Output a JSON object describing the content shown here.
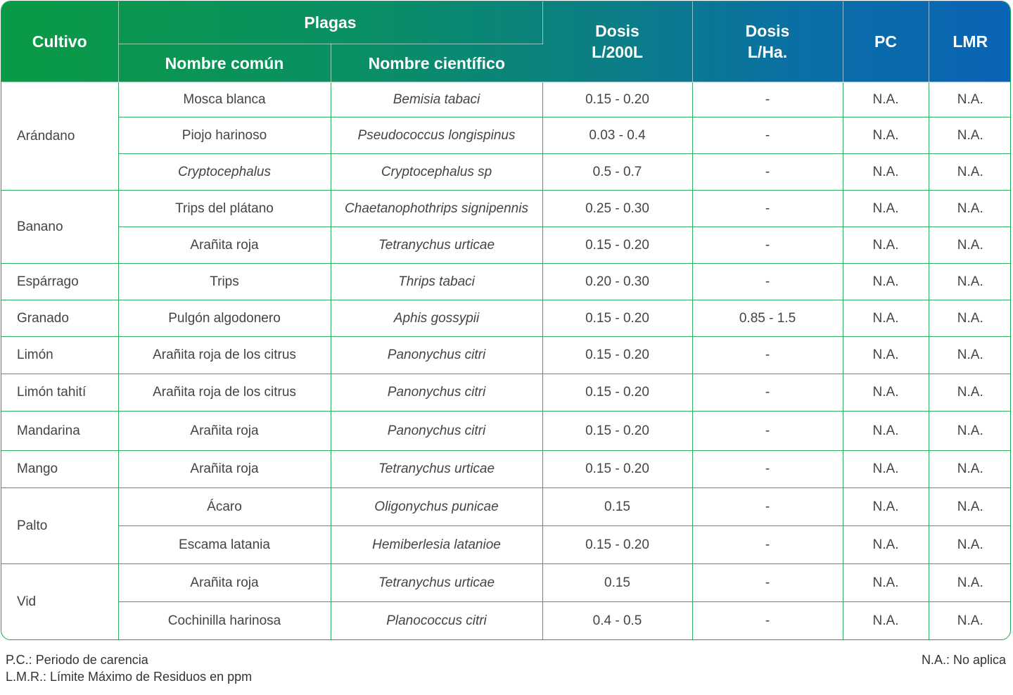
{
  "header": {
    "cultivo": "Cultivo",
    "plagas": "Plagas",
    "nombre_comun": "Nombre común",
    "nombre_cientifico": "Nombre científico",
    "dosis_200l_line1": "Dosis",
    "dosis_200l_line2": "L/200L",
    "dosis_ha_line1": "Dosis",
    "dosis_ha_line2": "L/Ha.",
    "pc": "PC",
    "lmr": "LMR"
  },
  "rows": [
    {
      "crop": "Arándano",
      "common": "Mosca blanca",
      "scientific": "Bemisia tabaci",
      "dose200": "0.15 - 0.20",
      "doseha": "-",
      "pc": "N.A.",
      "lmr": "N.A."
    },
    {
      "crop": "",
      "common": "Piojo harinoso",
      "scientific": "Pseudococcus longispinus",
      "dose200": "0.03 - 0.4",
      "doseha": "-",
      "pc": "N.A.",
      "lmr": "N.A."
    },
    {
      "crop": "",
      "common": "Cryptocephalus",
      "scientific": "Cryptocephalus sp",
      "dose200": "0.5 - 0.7",
      "doseha": "-",
      "pc": "N.A.",
      "lmr": "N.A."
    },
    {
      "crop": "Banano",
      "common": "Trips del plátano",
      "scientific": "Chaetanophothrips signipennis",
      "dose200": "0.25 - 0.30",
      "doseha": "-",
      "pc": "N.A.",
      "lmr": "N.A."
    },
    {
      "crop": "",
      "common": "Arañita roja",
      "scientific": "Tetranychus urticae",
      "dose200": "0.15 - 0.20",
      "doseha": "-",
      "pc": "N.A.",
      "lmr": "N.A."
    },
    {
      "crop": "Espárrago",
      "common": "Trips",
      "scientific": "Thrips tabaci",
      "dose200": "0.20 - 0.30",
      "doseha": "-",
      "pc": "N.A.",
      "lmr": "N.A."
    },
    {
      "crop": "Granado",
      "common": "Pulgón algodonero",
      "scientific": "Aphis gossypii",
      "dose200": "0.15 - 0.20",
      "doseha": "0.85 - 1.5",
      "pc": "N.A.",
      "lmr": "N.A."
    },
    {
      "crop": "Limón",
      "common": "Arañita roja de los citrus",
      "scientific": "Panonychus citri",
      "dose200": "0.15 - 0.20",
      "doseha": "-",
      "pc": "N.A.",
      "lmr": "N.A."
    },
    {
      "crop": "Limón tahití",
      "common": "Arañita roja de los citrus",
      "scientific": "Panonychus citri",
      "dose200": "0.15 - 0.20",
      "doseha": "-",
      "pc": "N.A.",
      "lmr": "N.A."
    },
    {
      "crop": "Mandarina",
      "common": "Arañita roja",
      "scientific": "Panonychus citri",
      "dose200": "0.15 - 0.20",
      "doseha": "-",
      "pc": "N.A.",
      "lmr": "N.A."
    },
    {
      "crop": "Mango",
      "common": "Arañita roja",
      "scientific": "Tetranychus urticae",
      "dose200": "0.15 - 0.20",
      "doseha": "-",
      "pc": "N.A.",
      "lmr": "N.A."
    },
    {
      "crop": "Palto",
      "common": "Ácaro",
      "scientific": "Oligonychus punicae",
      "dose200": "0.15",
      "doseha": "-",
      "pc": "N.A.",
      "lmr": "N.A."
    },
    {
      "crop": "",
      "common": "Escama latania",
      "scientific": "Hemiberlesia latanioe",
      "dose200": "0.15 - 0.20",
      "doseha": "-",
      "pc": "N.A.",
      "lmr": "N.A."
    },
    {
      "crop": "Vid",
      "common": "Arañita roja",
      "scientific": "Tetranychus urticae",
      "dose200": "0.15",
      "doseha": "-",
      "pc": "N.A.",
      "lmr": "N.A."
    },
    {
      "crop": "",
      "common": "Cochinilla harinosa",
      "scientific": "Planococcus citri",
      "dose200": "0.4 - 0.5",
      "doseha": "-",
      "pc": "N.A.",
      "lmr": "N.A."
    }
  ],
  "footer": {
    "pc_note": "P.C.: Periodo de carencia",
    "lmr_note": "L.M.R.: Límite Máximo de Residuos en ppm",
    "na_note": "N.A.: No aplica"
  },
  "colors": {
    "header_start": "#0a9a45",
    "header_end": "#0a63b5",
    "grid_line": "#33a964"
  }
}
